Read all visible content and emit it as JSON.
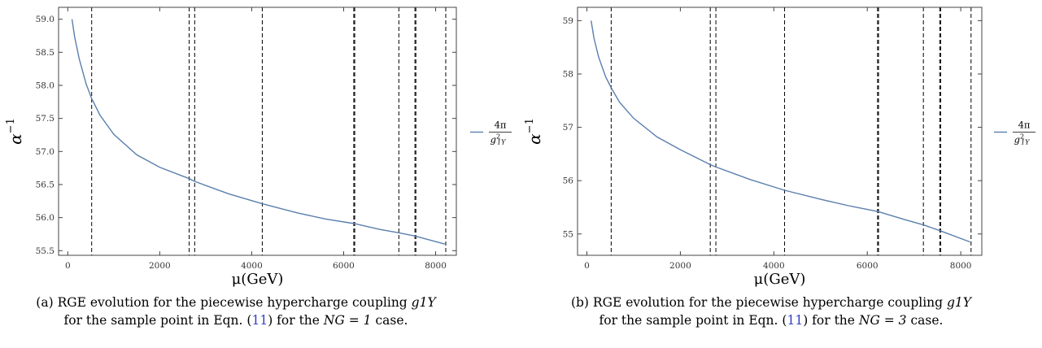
{
  "chart_data": [
    {
      "type": "line",
      "xlabel": "μ(GeV)",
      "ylabel": "α⁻¹",
      "xlim": [
        -200,
        8450
      ],
      "ylim": [
        55.43,
        59.18
      ],
      "xticks": [
        0,
        2000,
        4000,
        6000,
        8000
      ],
      "xtick_labels": [
        "0",
        "2000",
        "4000",
        "6000",
        "8000"
      ],
      "yticks": [
        55.5,
        56.0,
        56.5,
        57.0,
        57.5,
        58.0,
        58.5,
        59.0
      ],
      "ytick_labels": [
        "55.5",
        "56.0",
        "56.5",
        "57.0",
        "57.5",
        "58.0",
        "58.5",
        "59.0"
      ],
      "grid": false,
      "legend": "right",
      "series": [
        {
          "name": "4π/g²1Y",
          "color": "#5b7fad",
          "points": [
            [
              91,
              59.0
            ],
            [
              150,
              58.73
            ],
            [
              250,
              58.4
            ],
            [
              400,
              58.02
            ],
            [
              520,
              57.8
            ],
            [
              700,
              57.55
            ],
            [
              1000,
              57.26
            ],
            [
              1500,
              56.95
            ],
            [
              2000,
              56.76
            ],
            [
              2640,
              56.59
            ],
            [
              2750,
              56.55
            ],
            [
              3500,
              56.36
            ],
            [
              4230,
              56.21
            ],
            [
              5000,
              56.07
            ],
            [
              5600,
              55.98
            ],
            [
              6230,
              55.91
            ],
            [
              6800,
              55.82
            ],
            [
              7200,
              55.77
            ],
            [
              7560,
              55.72
            ],
            [
              8200,
              55.6
            ]
          ]
        }
      ],
      "vlines": [
        520,
        2640,
        2760,
        4230,
        6220,
        6240,
        7200,
        7550,
        7570,
        8220
      ],
      "caption": {
        "label": "(a)",
        "line1": "RGE evolution for the piecewise hypercharge coupling",
        "coupling": "g1Y",
        "line2_a": "for the sample point in Eqn. (",
        "eqn": "11",
        "line2_b": ") for the",
        "ng": "NG = 1",
        "line2_c": "case."
      }
    },
    {
      "type": "line",
      "xlabel": "μ(GeV)",
      "ylabel": "α⁻¹",
      "xlim": [
        -200,
        8450
      ],
      "ylim": [
        54.6,
        59.25
      ],
      "xticks": [
        0,
        2000,
        4000,
        6000,
        8000
      ],
      "xtick_labels": [
        "0",
        "2000",
        "4000",
        "6000",
        "8000"
      ],
      "yticks": [
        55,
        56,
        57,
        58,
        59
      ],
      "ytick_labels": [
        "55",
        "56",
        "57",
        "58",
        "59"
      ],
      "grid": false,
      "legend": "right",
      "series": [
        {
          "name": "4π/g²1Y",
          "color": "#5b7fad",
          "points": [
            [
              91,
              59.0
            ],
            [
              150,
              58.68
            ],
            [
              250,
              58.32
            ],
            [
              400,
              57.95
            ],
            [
              520,
              57.74
            ],
            [
              700,
              57.47
            ],
            [
              1000,
              57.17
            ],
            [
              1500,
              56.82
            ],
            [
              2000,
              56.58
            ],
            [
              2640,
              56.3
            ],
            [
              2750,
              56.26
            ],
            [
              3500,
              56.02
            ],
            [
              4230,
              55.82
            ],
            [
              5000,
              55.65
            ],
            [
              5600,
              55.53
            ],
            [
              6230,
              55.42
            ],
            [
              6800,
              55.27
            ],
            [
              7200,
              55.17
            ],
            [
              7560,
              55.06
            ],
            [
              8200,
              54.85
            ]
          ]
        }
      ],
      "vlines": [
        520,
        2640,
        2760,
        4230,
        6220,
        6240,
        7200,
        7550,
        7570,
        8220
      ],
      "caption": {
        "label": "(b)",
        "line1": "RGE evolution for the piecewise hypercharge coupling",
        "coupling": "g1Y",
        "line2_a": "for the sample point in Eqn. (",
        "eqn": "11",
        "line2_b": ") for the",
        "ng": "NG = 3",
        "line2_c": "case."
      }
    }
  ]
}
